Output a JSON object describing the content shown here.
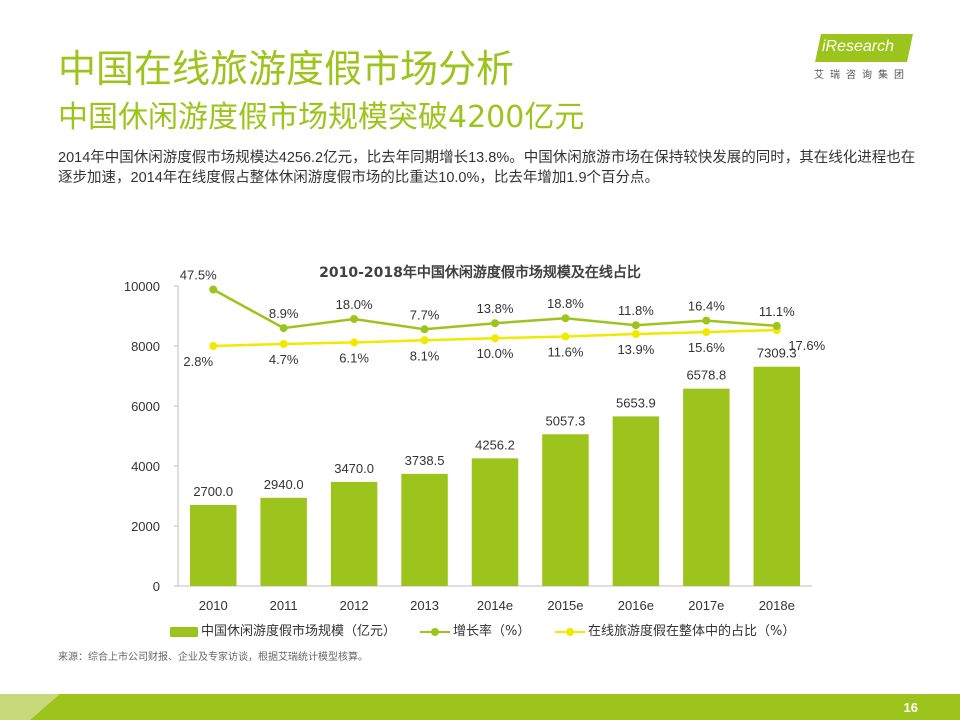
{
  "header": {
    "title": "中国在线旅游度假市场分析",
    "subtitle": "中国休闲游度假市场规模突破4200亿元",
    "description": "2014年中国休闲游度假市场规模达4256.2亿元，比去年同期增长13.8%。中国休闲旅游市场在保持较快发展的同时，其在线化进程也在逐步加速，2014年在线度假占整体休闲游度假市场的比重达10.0%，比去年增加1.9个百分点。"
  },
  "logo": {
    "brand": "iResearch",
    "sub": "艾瑞咨询集团"
  },
  "chart_data": {
    "type": "bar",
    "title": "2010-2018年中国休闲游度假市场规模及在线占比",
    "categories": [
      "2010",
      "2011",
      "2012",
      "2013",
      "2014e",
      "2015e",
      "2016e",
      "2017e",
      "2018e"
    ],
    "ylim": [
      0,
      10000
    ],
    "yticks": [
      0,
      2000,
      4000,
      6000,
      8000,
      10000
    ],
    "series": [
      {
        "name": "中国休闲游度假市场规模（亿元）",
        "type": "bar",
        "values": [
          2700.0,
          2940.0,
          3470.0,
          3738.5,
          4256.2,
          5057.3,
          5653.9,
          6578.8,
          7309.3
        ],
        "labels": [
          "2700.0",
          "2940.0",
          "3470.0",
          "3738.5",
          "4256.2",
          "5057.3",
          "5653.9",
          "6578.8",
          "7309.3"
        ],
        "color": "#9dc41c"
      },
      {
        "name": "增长率（%）",
        "type": "line",
        "values": [
          47.5,
          8.9,
          18.0,
          7.7,
          13.8,
          18.8,
          11.8,
          16.4,
          11.1
        ],
        "labels": [
          "47.5%",
          "8.9%",
          "18.0%",
          "7.7%",
          "13.8%",
          "18.8%",
          "11.8%",
          "16.4%",
          "11.1%"
        ],
        "color": "#9dc41c"
      },
      {
        "name": "在线旅游度假在整体中的占比（%）",
        "type": "line",
        "values": [
          2.8,
          4.7,
          6.1,
          8.1,
          10.0,
          11.6,
          13.9,
          15.6,
          17.6
        ],
        "labels": [
          "2.8%",
          "4.7%",
          "6.1%",
          "8.1%",
          "10.0%",
          "11.6%",
          "13.9%",
          "15.6%",
          "17.6%"
        ],
        "color": "#f0ea00"
      }
    ]
  },
  "legend": {
    "bar": "中国休闲游度假市场规模（亿元）",
    "growth": "增长率（%）",
    "share": "在线旅游度假在整体中的占比（%）"
  },
  "footer": {
    "source": "来源：综合上市公司财报、企业及专家访谈，根据艾瑞统计模型核算。",
    "page": "16"
  }
}
